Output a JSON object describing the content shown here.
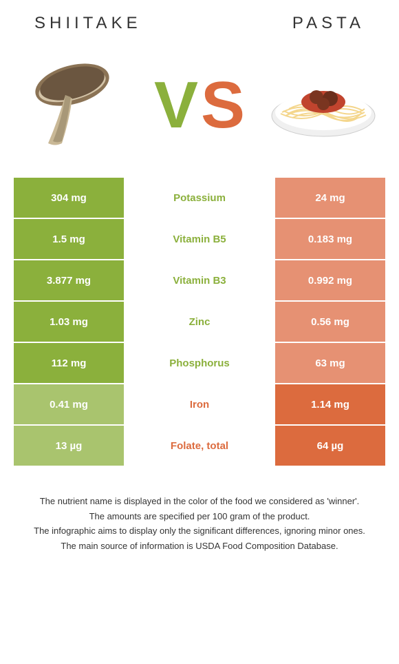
{
  "header": {
    "left_title": "SHIITAKE",
    "right_title": "PASTA"
  },
  "vs": {
    "v": "V",
    "s": "S"
  },
  "colors": {
    "left_winner_bg": "#8bb03c",
    "left_loser_bg": "#a9c46e",
    "right_winner_bg": "#dc6b3e",
    "right_loser_bg": "#e69173",
    "left_text": "#8bb03c",
    "right_text": "#dc6b3e"
  },
  "rows": [
    {
      "left": "304 mg",
      "label": "Potassium",
      "right": "24 mg",
      "winner": "left"
    },
    {
      "left": "1.5 mg",
      "label": "Vitamin B5",
      "right": "0.183 mg",
      "winner": "left"
    },
    {
      "left": "3.877 mg",
      "label": "Vitamin B3",
      "right": "0.992 mg",
      "winner": "left"
    },
    {
      "left": "1.03 mg",
      "label": "Zinc",
      "right": "0.56 mg",
      "winner": "left"
    },
    {
      "left": "112 mg",
      "label": "Phosphorus",
      "right": "63 mg",
      "winner": "left"
    },
    {
      "left": "0.41 mg",
      "label": "Iron",
      "right": "1.14 mg",
      "winner": "right"
    },
    {
      "left": "13 µg",
      "label": "Folate, total",
      "right": "64 µg",
      "winner": "right"
    }
  ],
  "footer": {
    "line1": "The nutrient name is displayed in the color of the food we considered as 'winner'.",
    "line2": "The amounts are specified per 100 gram of the product.",
    "line3": "The infographic aims to display only the significant differences, ignoring minor ones.",
    "line4": "The main source of information is USDA Food Composition Database."
  }
}
